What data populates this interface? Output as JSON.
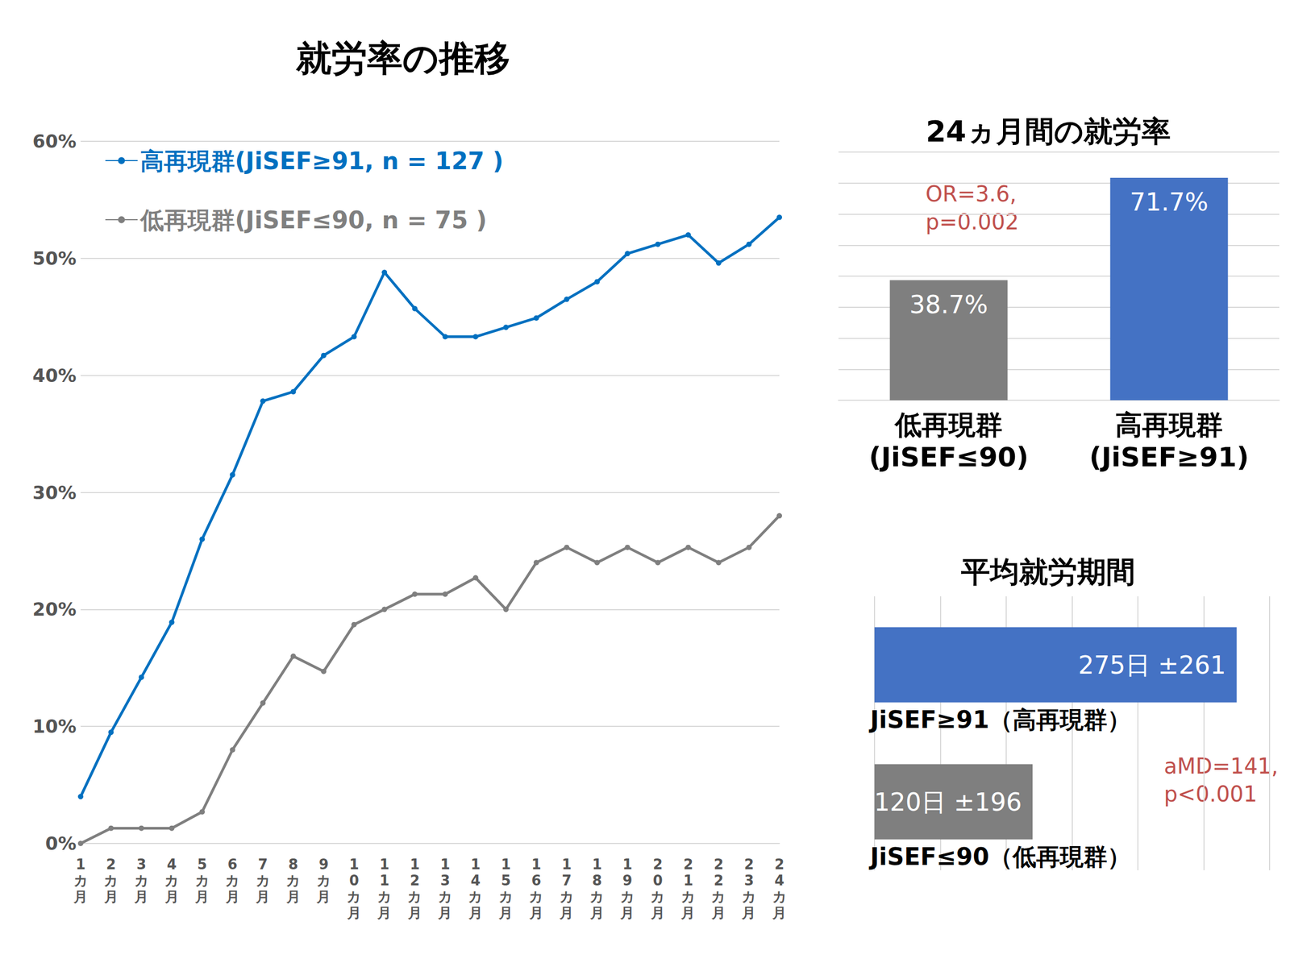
{
  "chart_data": [
    {
      "type": "line",
      "title": "就労率の推移",
      "categories": [
        "1カ月",
        "2カ月",
        "3カ月",
        "4カ月",
        "5カ月",
        "6カ月",
        "7カ月",
        "8カ月",
        "9カ月",
        "10カ月",
        "11カ月",
        "12カ月",
        "13カ月",
        "14カ月",
        "15カ月",
        "16カ月",
        "17カ月",
        "18カ月",
        "19カ月",
        "20カ月",
        "21カ月",
        "22カ月",
        "23カ月",
        "24カ月"
      ],
      "series": [
        {
          "name": "高再現群(JiSEF≥91, n = 127 )",
          "color": "#0070c0",
          "marker": "circle",
          "values": [
            4.0,
            9.5,
            14.2,
            18.9,
            26.0,
            31.5,
            37.8,
            38.6,
            41.7,
            43.3,
            48.8,
            45.7,
            43.3,
            43.3,
            44.1,
            44.9,
            46.5,
            48.0,
            50.4,
            51.2,
            52.0,
            49.6,
            51.2,
            53.5
          ]
        },
        {
          "name": "低再現群(JiSEF≤90, n = 75 )",
          "color": "#7f7f7f",
          "marker": "circle",
          "values": [
            0.0,
            1.3,
            1.3,
            1.3,
            2.7,
            8.0,
            12.0,
            16.0,
            14.7,
            18.7,
            20.0,
            21.3,
            21.3,
            22.7,
            20.0,
            24.0,
            25.3,
            24.0,
            25.3,
            24.0,
            25.3,
            24.0,
            25.3,
            28.0
          ]
        }
      ],
      "ylim": [
        0,
        60
      ],
      "yticks": [
        {
          "value": 0,
          "label": "0%"
        },
        {
          "value": 10,
          "label": "10%"
        },
        {
          "value": 20,
          "label": "20%"
        },
        {
          "value": 30,
          "label": "30%"
        },
        {
          "value": 40,
          "label": "40%"
        },
        {
          "value": 50,
          "label": "50%"
        },
        {
          "value": 60,
          "label": "60%"
        }
      ],
      "grid": true,
      "legend": "upper left"
    },
    {
      "type": "bar",
      "title": "24ヵ月間の就労率",
      "categories": [
        "低再現群\n(JiSEF≤90)",
        "高再現群\n(JiSEF≥91)"
      ],
      "values": [
        38.7,
        71.7
      ],
      "value_labels": [
        "38.7%",
        "71.7%"
      ],
      "colors": [
        "#7f7f7f",
        "#4472c4"
      ],
      "ylim": [
        0,
        80
      ],
      "yticks": [
        0,
        10,
        20,
        30,
        40,
        50,
        60,
        70,
        80
      ],
      "grid": true,
      "data_labels": true,
      "tick_labels": "x",
      "annotations": [
        "OR=3.6,\np=0.002"
      ]
    },
    {
      "type": "bar",
      "title": "平均就労期間",
      "orientation": "horizontal",
      "categories": [
        "JiSEF≥91（高再現群）",
        "JiSEF≤90（低再現群）"
      ],
      "values": [
        275,
        120
      ],
      "value_labels": [
        "275日 ±261",
        "120日 ±196"
      ],
      "colors": [
        "#4472c4",
        "#7f7f7f"
      ],
      "xlim": [
        0,
        300
      ],
      "xticks": [
        0,
        50,
        100,
        150,
        200,
        250,
        300
      ],
      "grid": true,
      "data_labels": true,
      "tick_labels": false,
      "annotations": [
        "aMD=141,\np<0.001"
      ]
    }
  ]
}
